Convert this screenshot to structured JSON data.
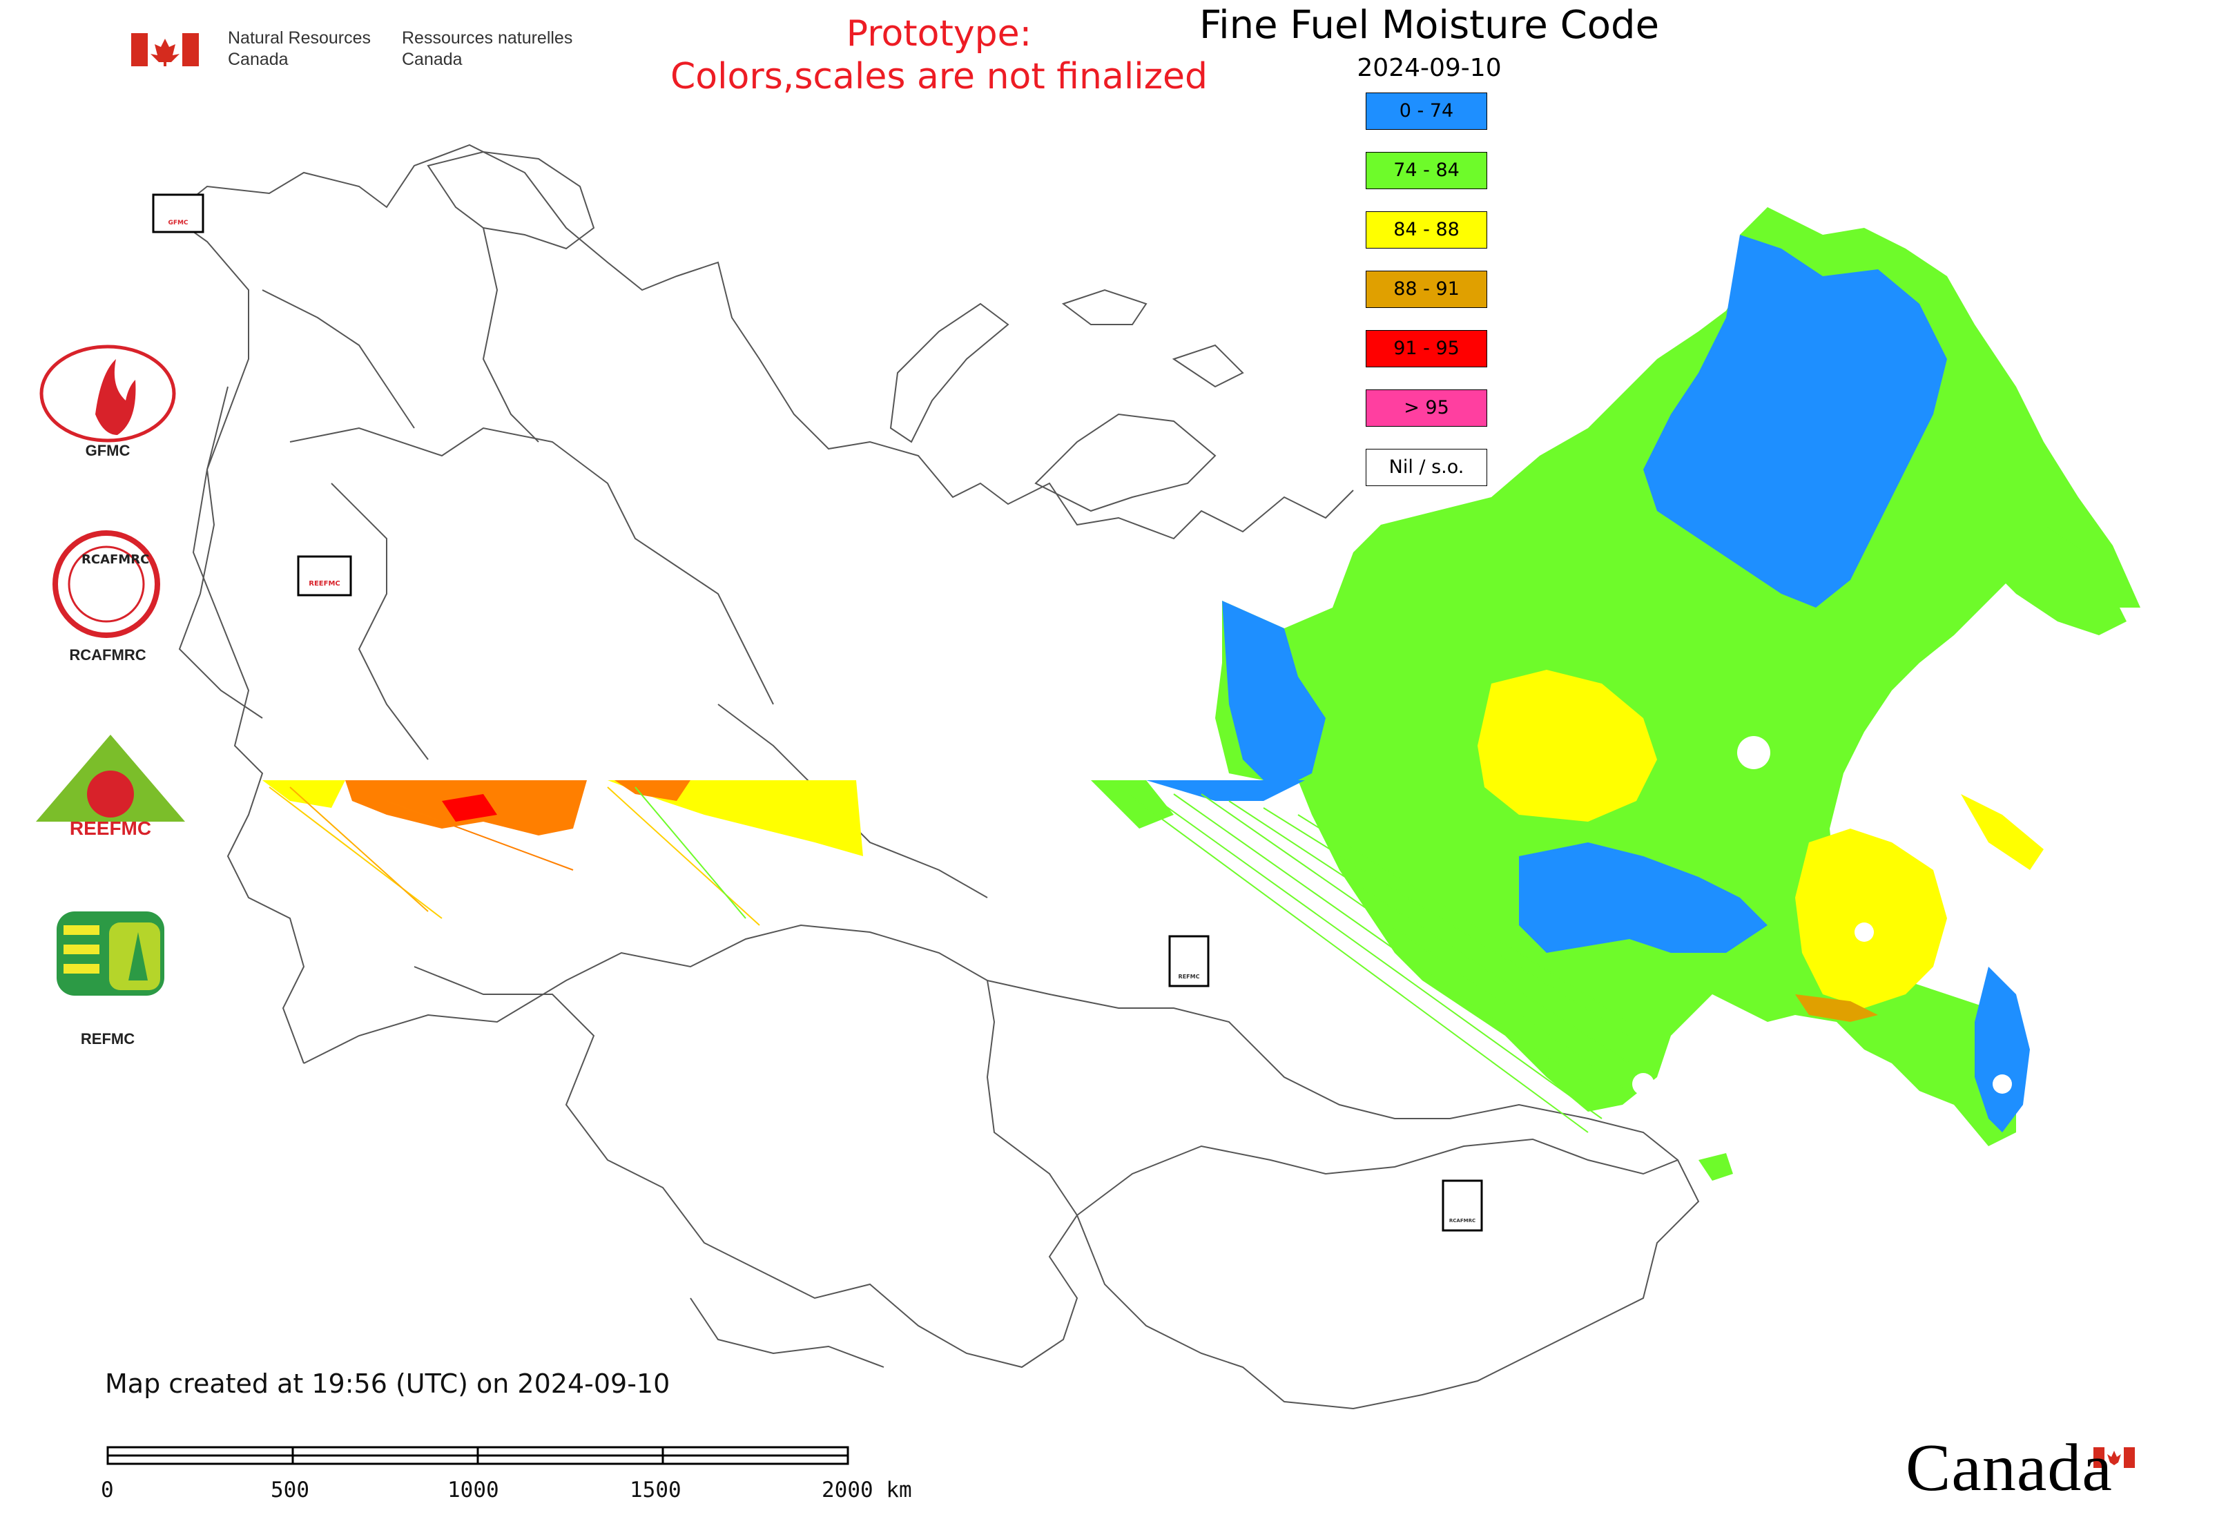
{
  "header": {
    "org_en_line1": "Natural Resources",
    "org_en_line2": "Canada",
    "org_fr_line1": "Ressources naturelles",
    "org_fr_line2": "Canada"
  },
  "prototype_notice": {
    "line1": "Prototype:",
    "line2": "Colors,scales are not finalized"
  },
  "title": "Fine Fuel Moisture Code",
  "date": "2024-09-10",
  "legend": [
    {
      "label": "0 - 74",
      "color": "#1e8fff"
    },
    {
      "label": "74 - 84",
      "color": "#6efb2a"
    },
    {
      "label": "84 - 88",
      "color": "#ffff00"
    },
    {
      "label": "88 - 91",
      "color": "#e0a000"
    },
    {
      "label": "91 - 95",
      "color": "#ff0000"
    },
    {
      "label": "> 95",
      "color": "#ff3fa0"
    },
    {
      "label": "Nil / s.o.",
      "color": "#ffffff"
    }
  ],
  "logos": [
    {
      "name": "GFMC",
      "caption": "GFMC",
      "small": "GFMC"
    },
    {
      "name": "RCAFMRC",
      "caption": "RCAFMRC",
      "inner": "RCAFMRC",
      "small": "RCAFMRC"
    },
    {
      "name": "REEFMC",
      "caption": "",
      "inner": "REEFMC",
      "small": "REEFMC"
    },
    {
      "name": "REFMC",
      "caption": "REFMC",
      "small": "REFMC"
    }
  ],
  "footer": {
    "created": "Map created at 19:56 (UTC) on 2024-09-10"
  },
  "scale_bar": {
    "ticks": [
      "0",
      "500",
      "1000",
      "1500",
      "2000 km"
    ]
  },
  "wordmark": "Canada",
  "colors": {
    "prototype_text": "#ed1c24",
    "boundary": "#555555",
    "canada_red": "#d52b1e"
  }
}
